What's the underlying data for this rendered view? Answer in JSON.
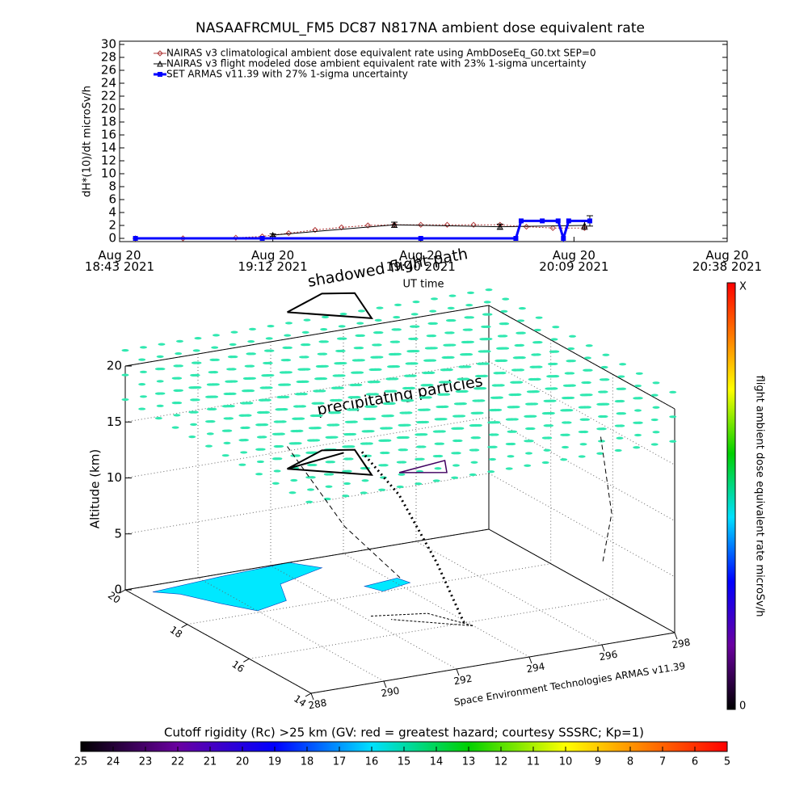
{
  "chart_data": [
    {
      "type": "line",
      "title": "NASAAFRCMUL_FM5 DC87 N817NA ambient dose equivalent rate",
      "ylabel": "dH*(10)/dt microSv/h",
      "xlabel": "UT time",
      "xlim": [
        "2021-08-20T18:43",
        "2021-08-20T20:38"
      ],
      "xticks": [
        {
          "value": "2021-08-20T18:43",
          "label": "Aug 20\n18:43 2021"
        },
        {
          "value": "2021-08-20T19:12",
          "label": "Aug 20\n19:12 2021"
        },
        {
          "value": "2021-08-20T19:40",
          "label": "Aug 20\n19:40 2021"
        },
        {
          "value": "2021-08-20T20:09",
          "label": "Aug 20\n20:09 2021"
        },
        {
          "value": "2021-08-20T20:38",
          "label": "Aug 20\n20:38 2021"
        }
      ],
      "ylim": [
        -0.5,
        30.5
      ],
      "yticks": [
        0,
        2,
        4,
        6,
        8,
        10,
        12,
        14,
        16,
        18,
        20,
        22,
        24,
        26,
        28,
        30
      ],
      "series": [
        {
          "name": "NAIRAS v3 climatological ambient dose equivalent rate using AmbDoseEq_G0.txt SEP=0",
          "color": "#b03a3a",
          "marker": "diamond",
          "x": [
            "2021-08-20T18:46",
            "2021-08-20T18:55",
            "2021-08-20T19:05",
            "2021-08-20T19:10",
            "2021-08-20T19:15",
            "2021-08-20T19:20",
            "2021-08-20T19:25",
            "2021-08-20T19:30",
            "2021-08-20T19:35",
            "2021-08-20T19:40",
            "2021-08-20T19:45",
            "2021-08-20T19:50",
            "2021-08-20T19:55",
            "2021-08-20T20:00",
            "2021-08-20T20:05",
            "2021-08-20T20:11"
          ],
          "values": [
            0,
            0,
            0.1,
            0.3,
            0.8,
            1.3,
            1.7,
            2.0,
            2.1,
            2.1,
            2.1,
            2.1,
            2.1,
            1.8,
            1.6,
            1.6
          ]
        },
        {
          "name": "NAIRAS v3 flight modeled dose ambient equivalent rate with 23% 1-sigma uncertainty",
          "color": "#000000",
          "marker": "triangle",
          "x": [
            "2021-08-20T19:12",
            "2021-08-20T19:35",
            "2021-08-20T19:55",
            "2021-08-20T20:11"
          ],
          "values": [
            0.5,
            2.1,
            1.8,
            2.0
          ],
          "errors": [
            0.2,
            0.4,
            0.4,
            0.6
          ]
        },
        {
          "name": "SET ARMAS v11.39 with 27% 1-sigma uncertainty",
          "color": "#0000ff",
          "marker": "square",
          "x": [
            "2021-08-20T18:46",
            "2021-08-20T19:10",
            "2021-08-20T19:40",
            "2021-08-20T19:58",
            "2021-08-20T19:59",
            "2021-08-20T20:03",
            "2021-08-20T20:06",
            "2021-08-20T20:07",
            "2021-08-20T20:08",
            "2021-08-20T20:12"
          ],
          "values": [
            0,
            0,
            0,
            0,
            2.7,
            2.7,
            2.7,
            0,
            2.7,
            2.7
          ],
          "errors": [
            null,
            null,
            null,
            null,
            null,
            null,
            null,
            null,
            null,
            0.8
          ]
        }
      ]
    },
    {
      "type": "scatter3d",
      "annotations": [
        "shadowed flight path",
        "precipitating particles"
      ],
      "zlabel": "Altitude (km)",
      "zticks": [
        0,
        5,
        10,
        15,
        20
      ],
      "zlim": [
        0,
        20
      ],
      "latticks": [
        20,
        18,
        16,
        14
      ],
      "latlim": [
        20,
        14
      ],
      "lonticks": [
        288,
        290,
        292,
        294,
        296,
        298
      ],
      "lonlim": [
        288,
        298
      ],
      "credit": "Space Environment Technologies ARMAS v11.39",
      "colorbar": {
        "label": "flight ambient dose equivalent rate microSv/h",
        "top": "X",
        "bottom": "0"
      }
    },
    {
      "type": "colorbar",
      "title": "Cutoff rigidity (Rc) >25 km (GV: red = greatest hazard; courtesy SSSRC; Kp=1)",
      "xlim": [
        25,
        5
      ],
      "xticks": [
        25,
        24,
        23,
        22,
        21,
        20,
        19,
        18,
        17,
        16,
        15,
        14,
        13,
        12,
        11,
        10,
        9,
        8,
        7,
        6,
        5
      ]
    }
  ]
}
